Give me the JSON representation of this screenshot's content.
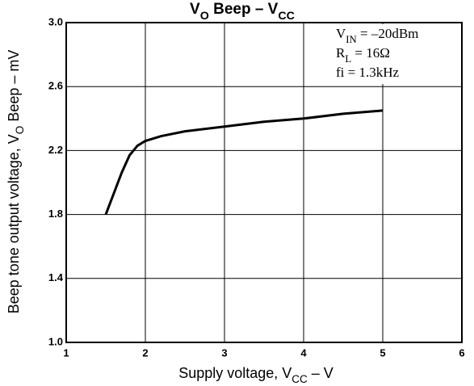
{
  "chart_data": {
    "type": "line",
    "title": [
      "V",
      "O",
      " Beep  –  V",
      "CC"
    ],
    "x_label": [
      "Supply voltage, V",
      "CC",
      " – V"
    ],
    "y_label": [
      "Beep tone output voltage, V",
      "O",
      " Beep – mV"
    ],
    "annotations": [
      [
        "V",
        "IN",
        " = –20dBm"
      ],
      [
        "R",
        "L",
        " = 16Ω"
      ],
      [
        "fi = 1.3kHz"
      ]
    ],
    "series": [
      {
        "color": "#000000",
        "x": [
          1.5,
          1.6,
          1.7,
          1.8,
          1.9,
          2.0,
          2.2,
          2.5,
          3.0,
          3.5,
          4.0,
          4.5,
          5.0
        ],
        "values": [
          1.8,
          1.93,
          2.06,
          2.17,
          2.23,
          2.26,
          2.29,
          2.32,
          2.35,
          2.38,
          2.4,
          2.43,
          2.45
        ]
      }
    ],
    "xlim": [
      1,
      6
    ],
    "xticks": [
      1,
      2,
      3,
      4,
      5,
      6
    ],
    "ylim": [
      1.0,
      3.0
    ],
    "yticks": [
      {
        "value": 1.0,
        "label": "1.0"
      },
      {
        "value": 1.4,
        "label": "1.4"
      },
      {
        "value": 1.8,
        "label": "1.8"
      },
      {
        "value": 2.2,
        "label": "2.2"
      },
      {
        "value": 2.6,
        "label": "2.6"
      },
      {
        "value": 3.0,
        "label": "3.0"
      }
    ],
    "grid": true
  }
}
